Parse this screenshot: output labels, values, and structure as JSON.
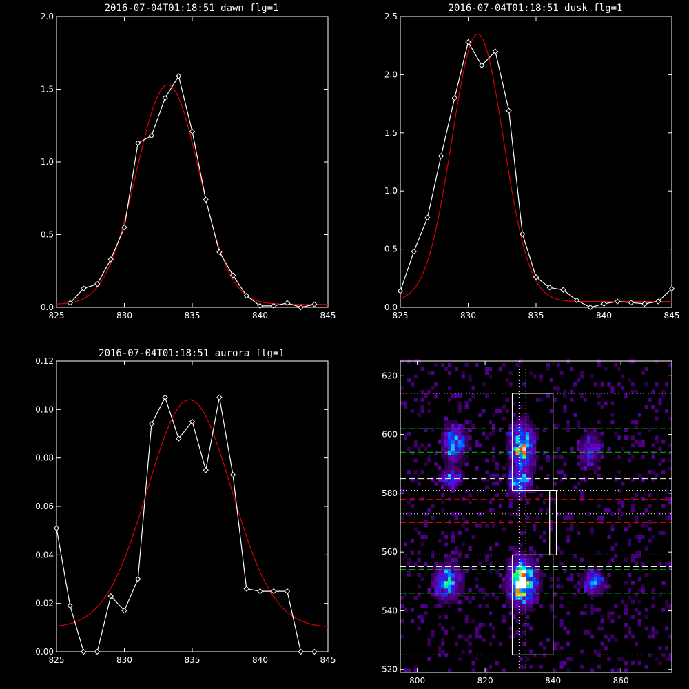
{
  "colors": {
    "background": "#000000",
    "axes": "#ffffff",
    "data_line": "#ffffff",
    "fit_line": "#dd0000"
  },
  "chart_data": [
    {
      "type": "line",
      "title": "2016-07-04T01:18:51 dawn flg=1",
      "xlim": [
        825,
        845
      ],
      "ylim": [
        0,
        2.0
      ],
      "xticks": [
        "825",
        "830",
        "835",
        "840",
        "845"
      ],
      "yticks": [
        "0.0",
        "0.5",
        "1.0",
        "1.5",
        "2.0"
      ],
      "series": [
        {
          "marker": "diamond",
          "x": [
            826,
            827,
            828,
            829,
            830,
            831,
            832,
            833,
            834,
            835,
            836,
            837,
            838,
            839,
            840,
            841,
            842,
            843,
            844
          ],
          "values": [
            0.03,
            0.13,
            0.16,
            0.33,
            0.55,
            1.13,
            1.18,
            1.44,
            1.59,
            1.21,
            0.74,
            0.38,
            0.22,
            0.08,
            0.01,
            0.01,
            0.03,
            0.0,
            0.02
          ]
        },
        {
          "fit": "gaussian",
          "amplitude": 1.51,
          "center": 833.2,
          "sigma": 2.3,
          "baseline": 0.02
        }
      ]
    },
    {
      "type": "line",
      "title": "2016-07-04T01:18:51 dusk flg=1",
      "xlim": [
        825,
        845
      ],
      "ylim": [
        0,
        2.5
      ],
      "xticks": [
        "825",
        "830",
        "835",
        "840",
        "845"
      ],
      "yticks": [
        "0.0",
        "0.5",
        "1.0",
        "1.5",
        "2.0",
        "2.5"
      ],
      "series": [
        {
          "marker": "diamond",
          "x": [
            825,
            826,
            827,
            828,
            829,
            830,
            831,
            832,
            833,
            834,
            835,
            836,
            837,
            838,
            839,
            840,
            841,
            842,
            843,
            844,
            845
          ],
          "values": [
            0.14,
            0.48,
            0.77,
            1.3,
            1.8,
            2.28,
            2.08,
            2.2,
            1.69,
            0.63,
            0.26,
            0.17,
            0.15,
            0.06,
            0.0,
            0.03,
            0.05,
            0.04,
            0.03,
            0.05,
            0.16
          ]
        },
        {
          "fit": "gaussian",
          "amplitude": 2.3,
          "center": 830.7,
          "sigma": 1.9,
          "baseline": 0.05
        }
      ]
    },
    {
      "type": "line",
      "title": "2016-07-04T01:18:51 aurora flg=1",
      "xlim": [
        825,
        845
      ],
      "ylim": [
        0,
        0.12
      ],
      "xticks": [
        "825",
        "830",
        "835",
        "840",
        "845"
      ],
      "yticks": [
        "0.00",
        "0.02",
        "0.04",
        "0.06",
        "0.08",
        "0.10",
        "0.12"
      ],
      "series": [
        {
          "marker": "diamond",
          "x": [
            825,
            826,
            827,
            828,
            829,
            830,
            831,
            832,
            833,
            834,
            835,
            836,
            837,
            838,
            839,
            840,
            841,
            842,
            843,
            844
          ],
          "values": [
            0.051,
            0.019,
            0.0,
            0.0,
            0.023,
            0.017,
            0.03,
            0.094,
            0.105,
            0.088,
            0.095,
            0.075,
            0.105,
            0.073,
            0.026,
            0.025,
            0.025,
            0.025,
            0.0,
            0.0
          ]
        },
        {
          "fit": "gaussian",
          "amplitude": 0.094,
          "center": 834.8,
          "sigma": 3.1,
          "baseline": 0.01
        }
      ]
    },
    {
      "type": "heatmap",
      "title": "",
      "xlim": [
        795,
        875
      ],
      "ylim": [
        519,
        625
      ],
      "xticks": [
        "800",
        "820",
        "840",
        "860"
      ],
      "yticks": [
        "520",
        "540",
        "560",
        "580",
        "600",
        "620"
      ],
      "colormap": "rainbow",
      "blobs": [
        {
          "x": 811,
          "y": 597,
          "sx": 2.2,
          "sy": 4,
          "peak": 0.55
        },
        {
          "x": 810,
          "y": 585,
          "sx": 2.0,
          "sy": 2,
          "peak": 0.45
        },
        {
          "x": 831,
          "y": 596,
          "sx": 2.3,
          "sy": 5,
          "peak": 0.8
        },
        {
          "x": 830,
          "y": 584,
          "sx": 2.0,
          "sy": 3,
          "peak": 0.55
        },
        {
          "x": 831,
          "y": 550,
          "sx": 2.6,
          "sy": 5,
          "peak": 1.0
        },
        {
          "x": 809,
          "y": 550,
          "sx": 2.6,
          "sy": 4,
          "peak": 0.6
        },
        {
          "x": 852,
          "y": 550,
          "sx": 2.0,
          "sy": 3,
          "peak": 0.45
        },
        {
          "x": 851,
          "y": 595,
          "sx": 2.0,
          "sy": 4,
          "peak": 0.35
        }
      ],
      "boxes": [
        {
          "x": [
            828,
            840
          ],
          "y": [
            581,
            614
          ]
        },
        {
          "x": [
            828,
            840
          ],
          "y": [
            525,
            559
          ]
        }
      ],
      "connector_x": [
        839,
        841
      ],
      "connector_y": [
        559,
        581
      ],
      "vlines": [
        {
          "x": 830,
          "style": "dotted"
        },
        {
          "x": 832,
          "style": "dotted"
        }
      ],
      "hlines": [
        {
          "y": 614,
          "color": "#ffffff",
          "style": "dotted"
        },
        {
          "y": 602,
          "color": "#00cc00",
          "style": "dashed"
        },
        {
          "y": 594,
          "color": "#00cc00",
          "style": "dashed"
        },
        {
          "y": 585,
          "color": "#ffffff",
          "style": "dashed"
        },
        {
          "y": 581,
          "color": "#ffffff",
          "style": "dotted"
        },
        {
          "y": 578,
          "color": "#dd0000",
          "style": "dashed"
        },
        {
          "y": 573,
          "color": "#ffffff",
          "style": "dotted"
        },
        {
          "y": 570,
          "color": "#dd0000",
          "style": "dashed"
        },
        {
          "y": 559,
          "color": "#ffffff",
          "style": "dotted"
        },
        {
          "y": 555,
          "color": "#ffffff",
          "style": "dashed"
        },
        {
          "y": 554,
          "color": "#00cc00",
          "style": "dashed"
        },
        {
          "y": 546,
          "color": "#00cc00",
          "style": "dashed"
        },
        {
          "y": 525,
          "color": "#ffffff",
          "style": "dotted"
        }
      ]
    }
  ]
}
